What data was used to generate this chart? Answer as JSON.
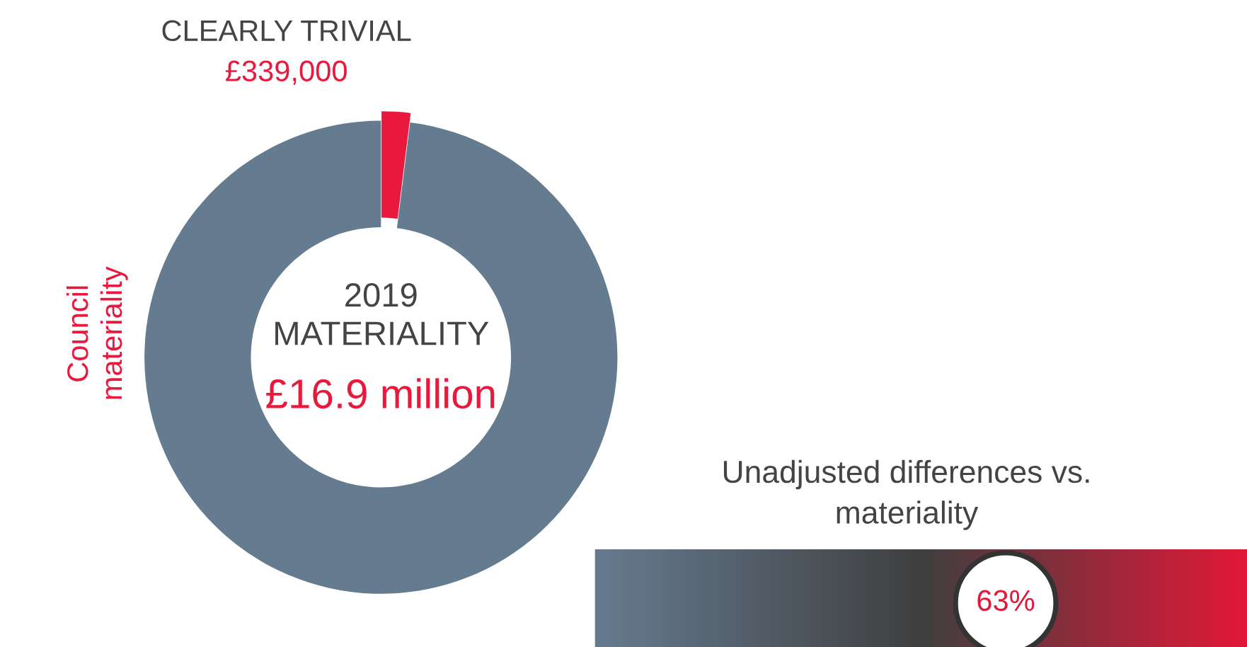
{
  "chart_data": [
    {
      "type": "donut",
      "title": "2019\nMATERIALITY",
      "categories": [
        "CLEARLY TRIVIAL",
        "Council\nmateriality"
      ],
      "values": [
        339000,
        16900000
      ],
      "value_labels": [
        "£339,000",
        "£16.9 million"
      ],
      "colors": [
        "#e8193c",
        "#657b8f"
      ]
    },
    {
      "type": "other",
      "title": "Unadjusted differences vs.\nmateriality",
      "annotations": [
        "63%"
      ]
    }
  ]
}
